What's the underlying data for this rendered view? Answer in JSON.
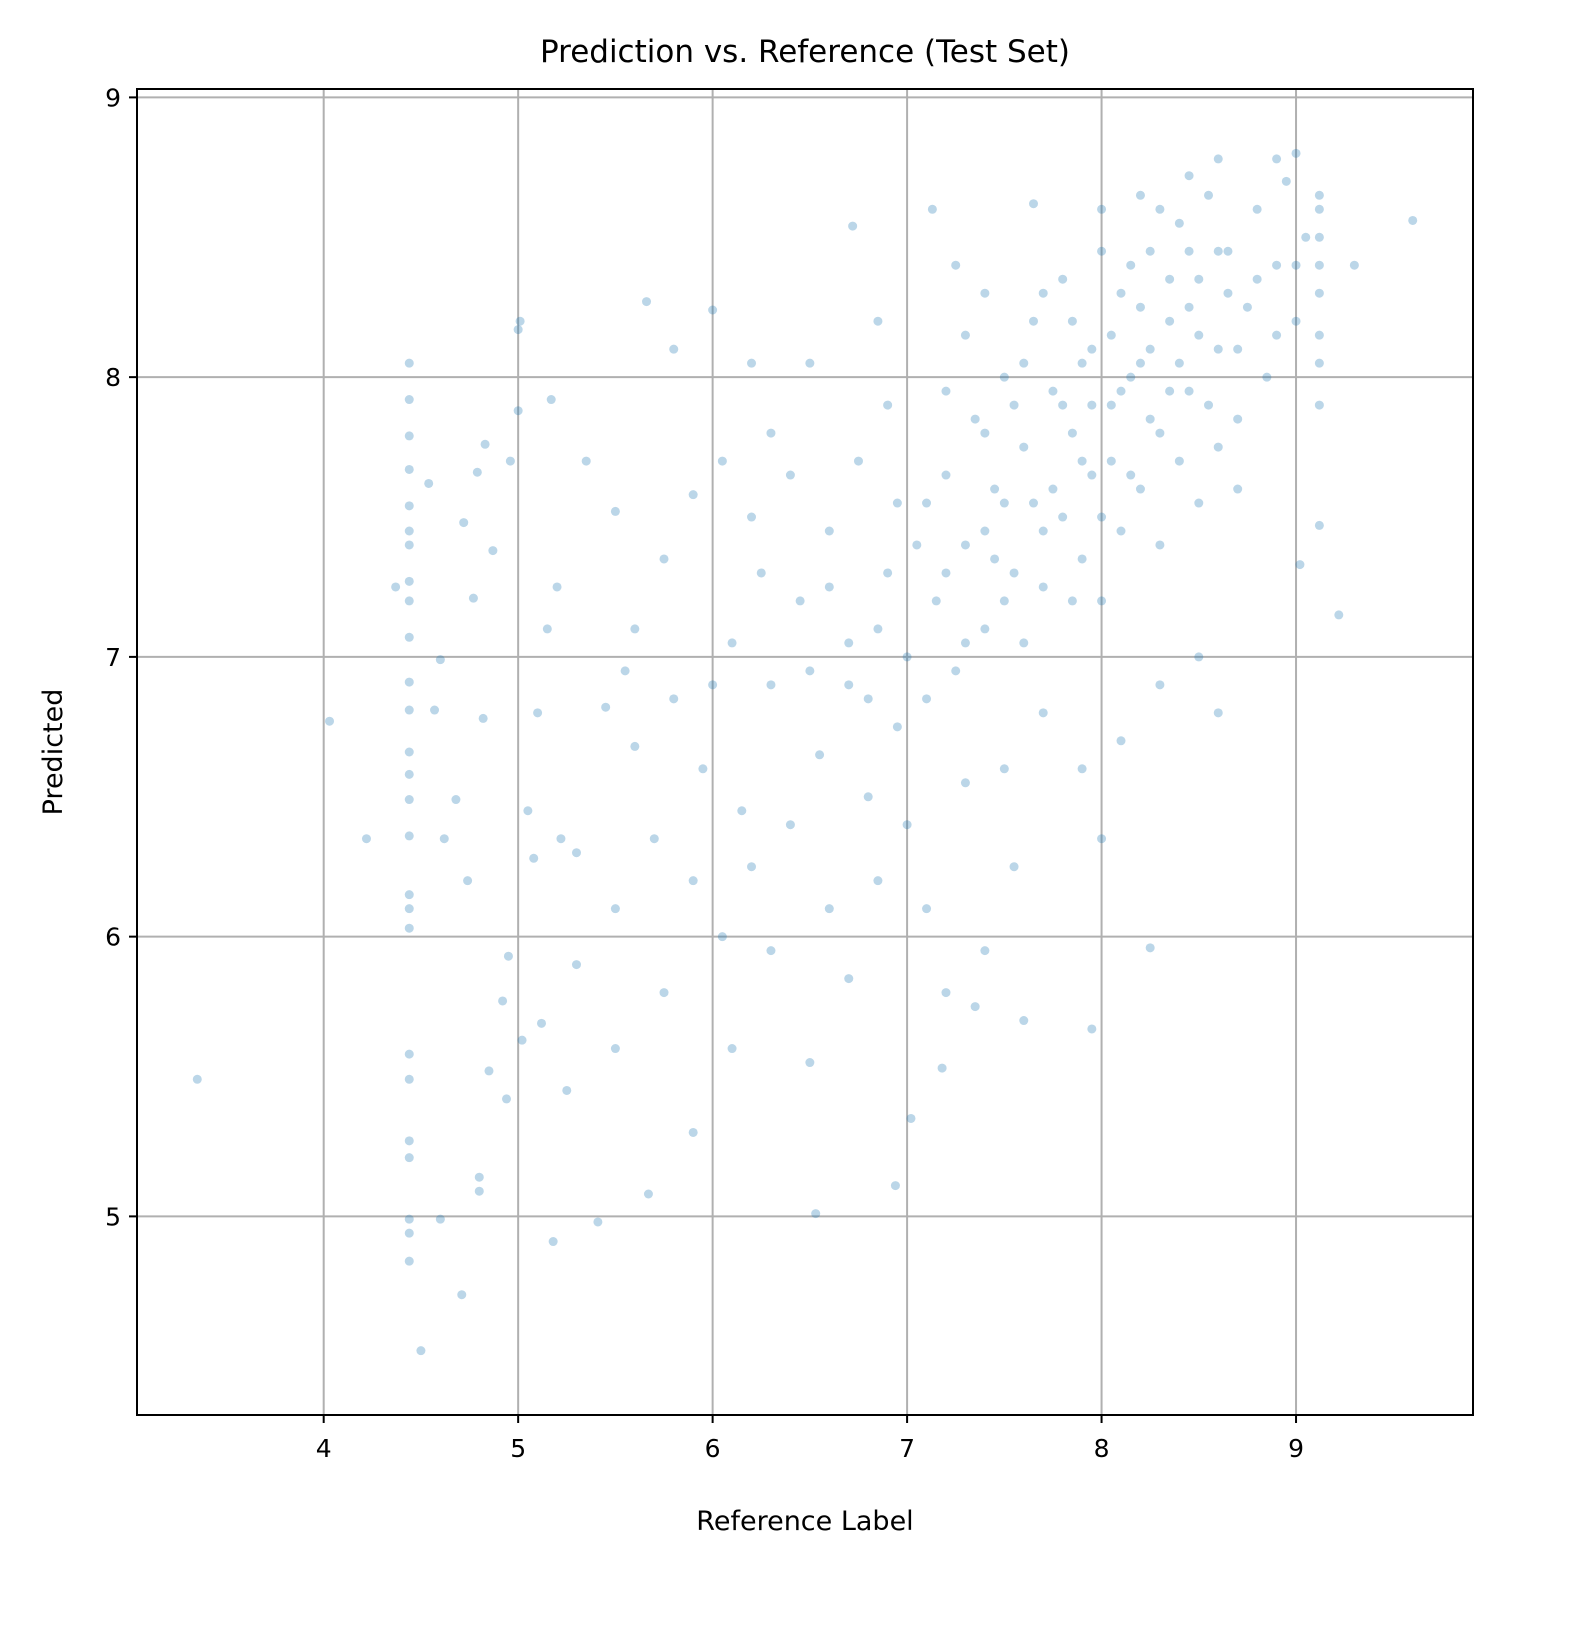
{
  "chart_data": {
    "type": "scatter",
    "title": "Prediction vs. Reference (Test Set)",
    "xlabel": "Reference Label",
    "ylabel": "Predicted",
    "xlim": [
      3.04,
      9.91
    ],
    "ylim": [
      4.29,
      9.03
    ],
    "xticks": [
      4,
      5,
      6,
      7,
      8,
      9
    ],
    "yticks": [
      5,
      6,
      7,
      8,
      9
    ],
    "grid": true,
    "point_color": "#1f77b4",
    "point_alpha": 0.3,
    "points": [
      [
        3.35,
        5.49
      ],
      [
        4.03,
        6.77
      ],
      [
        4.22,
        6.35
      ],
      [
        4.37,
        7.25
      ],
      [
        4.44,
        8.05
      ],
      [
        4.44,
        7.92
      ],
      [
        4.44,
        7.79
      ],
      [
        4.44,
        7.67
      ],
      [
        4.44,
        7.54
      ],
      [
        4.44,
        7.45
      ],
      [
        4.44,
        7.4
      ],
      [
        4.44,
        7.27
      ],
      [
        4.44,
        7.2
      ],
      [
        4.44,
        7.07
      ],
      [
        4.44,
        6.91
      ],
      [
        4.44,
        6.81
      ],
      [
        4.44,
        6.66
      ],
      [
        4.44,
        6.58
      ],
      [
        4.44,
        6.49
      ],
      [
        4.44,
        6.36
      ],
      [
        4.44,
        6.15
      ],
      [
        4.44,
        6.1
      ],
      [
        4.44,
        6.03
      ],
      [
        4.44,
        5.58
      ],
      [
        4.44,
        5.49
      ],
      [
        4.44,
        5.27
      ],
      [
        4.44,
        5.21
      ],
      [
        4.44,
        4.99
      ],
      [
        4.44,
        4.94
      ],
      [
        4.44,
        4.84
      ],
      [
        4.5,
        4.52
      ],
      [
        4.71,
        4.72
      ],
      [
        4.54,
        7.62
      ],
      [
        4.6,
        6.99
      ],
      [
        4.6,
        4.99
      ],
      [
        4.62,
        6.35
      ],
      [
        4.72,
        7.48
      ],
      [
        4.77,
        7.21
      ],
      [
        4.79,
        7.66
      ],
      [
        4.83,
        7.76
      ],
      [
        4.87,
        7.38
      ],
      [
        4.82,
        6.78
      ],
      [
        4.85,
        5.52
      ],
      [
        4.8,
        5.14
      ],
      [
        4.8,
        5.09
      ],
      [
        4.95,
        5.93
      ],
      [
        4.96,
        7.7
      ],
      [
        5.0,
        8.17
      ],
      [
        5.01,
        8.2
      ],
      [
        5.0,
        7.88
      ],
      [
        5.18,
        4.91
      ],
      [
        5.17,
        7.92
      ],
      [
        5.41,
        4.98
      ],
      [
        5.67,
        5.08
      ],
      [
        5.66,
        8.27
      ],
      [
        6.0,
        8.24
      ],
      [
        6.72,
        8.54
      ],
      [
        7.13,
        8.6
      ],
      [
        9.6,
        8.56
      ],
      [
        9.3,
        8.4
      ],
      [
        9.22,
        7.15
      ],
      [
        9.12,
        7.47
      ],
      [
        9.02,
        7.33
      ],
      [
        8.25,
        5.96
      ],
      [
        7.95,
        5.67
      ],
      [
        6.94,
        5.11
      ],
      [
        6.53,
        5.01
      ],
      [
        7.02,
        5.35
      ],
      [
        7.18,
        5.53
      ],
      [
        4.68,
        6.49
      ],
      [
        4.74,
        6.2
      ],
      [
        4.57,
        6.81
      ],
      [
        4.92,
        5.77
      ],
      [
        5.02,
        5.63
      ],
      [
        5.12,
        5.69
      ],
      [
        4.94,
        5.42
      ],
      [
        5.08,
        6.28
      ],
      [
        5.22,
        6.35
      ],
      [
        5.2,
        7.25
      ],
      [
        5.35,
        7.7
      ],
      [
        5.5,
        7.52
      ],
      [
        5.6,
        7.1
      ],
      [
        5.75,
        7.35
      ],
      [
        5.9,
        7.58
      ],
      [
        6.05,
        7.7
      ],
      [
        6.2,
        7.5
      ],
      [
        6.3,
        7.8
      ],
      [
        6.1,
        7.05
      ],
      [
        5.45,
        6.82
      ],
      [
        5.6,
        6.68
      ],
      [
        5.8,
        6.85
      ],
      [
        5.95,
        6.6
      ],
      [
        6.15,
        6.45
      ],
      [
        6.3,
        6.9
      ],
      [
        6.45,
        7.2
      ],
      [
        6.55,
        6.65
      ],
      [
        6.7,
        6.9
      ],
      [
        6.85,
        7.1
      ],
      [
        5.3,
        6.3
      ],
      [
        5.5,
        6.1
      ],
      [
        5.7,
        6.35
      ],
      [
        5.9,
        6.2
      ],
      [
        6.05,
        6.0
      ],
      [
        6.2,
        6.25
      ],
      [
        6.4,
        6.4
      ],
      [
        6.6,
        6.1
      ],
      [
        6.8,
        6.5
      ],
      [
        6.95,
        6.75
      ],
      [
        5.25,
        5.45
      ],
      [
        5.5,
        5.6
      ],
      [
        5.75,
        5.8
      ],
      [
        5.9,
        5.3
      ],
      [
        6.1,
        5.6
      ],
      [
        6.3,
        5.95
      ],
      [
        6.5,
        5.55
      ],
      [
        6.7,
        5.85
      ],
      [
        6.85,
        6.2
      ],
      [
        5.1,
        6.8
      ],
      [
        5.05,
        6.45
      ],
      [
        5.15,
        7.1
      ],
      [
        5.3,
        5.9
      ],
      [
        5.55,
        6.95
      ],
      [
        6.0,
        6.9
      ],
      [
        6.25,
        7.3
      ],
      [
        6.4,
        7.65
      ],
      [
        6.6,
        7.45
      ],
      [
        6.75,
        7.7
      ],
      [
        6.9,
        7.9
      ],
      [
        6.5,
        8.05
      ],
      [
        6.85,
        8.2
      ],
      [
        5.8,
        8.1
      ],
      [
        6.2,
        8.05
      ],
      [
        7.0,
        6.4
      ],
      [
        7.1,
        6.1
      ],
      [
        7.2,
        5.8
      ],
      [
        7.4,
        5.95
      ],
      [
        7.55,
        6.25
      ],
      [
        7.3,
        6.55
      ],
      [
        7.5,
        6.6
      ],
      [
        7.7,
        6.8
      ],
      [
        7.9,
        6.6
      ],
      [
        8.0,
        6.35
      ],
      [
        8.1,
        6.7
      ],
      [
        8.3,
        6.9
      ],
      [
        8.5,
        7.0
      ],
      [
        8.6,
        6.8
      ],
      [
        7.35,
        5.75
      ],
      [
        7.6,
        5.7
      ],
      [
        6.5,
        6.95
      ],
      [
        6.6,
        7.25
      ],
      [
        6.7,
        7.05
      ],
      [
        6.8,
        6.85
      ],
      [
        6.9,
        7.3
      ],
      [
        6.95,
        7.55
      ],
      [
        7.0,
        7.0
      ],
      [
        7.05,
        7.4
      ],
      [
        7.1,
        6.85
      ],
      [
        7.15,
        7.2
      ],
      [
        7.2,
        7.65
      ],
      [
        7.25,
        6.95
      ],
      [
        7.3,
        7.4
      ],
      [
        7.35,
        7.85
      ],
      [
        7.4,
        7.1
      ],
      [
        7.45,
        7.6
      ],
      [
        7.5,
        8.0
      ],
      [
        7.55,
        7.3
      ],
      [
        7.6,
        7.75
      ],
      [
        7.65,
        8.2
      ],
      [
        7.7,
        7.45
      ],
      [
        7.75,
        7.95
      ],
      [
        7.8,
        8.35
      ],
      [
        7.85,
        7.2
      ],
      [
        7.9,
        7.7
      ],
      [
        7.95,
        8.1
      ],
      [
        8.0,
        7.5
      ],
      [
        8.05,
        7.9
      ],
      [
        8.1,
        8.3
      ],
      [
        8.15,
        7.65
      ],
      [
        8.2,
        8.05
      ],
      [
        8.25,
        8.45
      ],
      [
        8.3,
        7.8
      ],
      [
        8.35,
        8.2
      ],
      [
        8.4,
        8.55
      ],
      [
        8.45,
        7.95
      ],
      [
        8.5,
        8.35
      ],
      [
        8.55,
        8.65
      ],
      [
        8.6,
        8.1
      ],
      [
        8.65,
        8.45
      ],
      [
        8.7,
        7.85
      ],
      [
        8.75,
        8.25
      ],
      [
        8.8,
        8.6
      ],
      [
        8.85,
        8.0
      ],
      [
        8.9,
        8.4
      ],
      [
        8.95,
        8.7
      ],
      [
        9.0,
        8.2
      ],
      [
        9.05,
        8.5
      ],
      [
        7.1,
        7.55
      ],
      [
        7.2,
        7.3
      ],
      [
        7.3,
        7.05
      ],
      [
        7.4,
        7.45
      ],
      [
        7.5,
        7.2
      ],
      [
        7.6,
        7.05
      ],
      [
        7.7,
        7.25
      ],
      [
        7.8,
        7.5
      ],
      [
        7.9,
        7.35
      ],
      [
        8.0,
        7.2
      ],
      [
        8.1,
        7.45
      ],
      [
        8.2,
        7.6
      ],
      [
        8.3,
        7.4
      ],
      [
        8.4,
        7.7
      ],
      [
        8.5,
        7.55
      ],
      [
        8.6,
        7.75
      ],
      [
        8.7,
        7.6
      ],
      [
        7.2,
        7.95
      ],
      [
        7.3,
        8.15
      ],
      [
        7.4,
        7.8
      ],
      [
        7.5,
        7.55
      ],
      [
        7.6,
        8.05
      ],
      [
        7.7,
        8.3
      ],
      [
        7.8,
        7.9
      ],
      [
        7.9,
        8.05
      ],
      [
        8.0,
        8.45
      ],
      [
        8.1,
        7.95
      ],
      [
        8.2,
        8.25
      ],
      [
        8.3,
        8.6
      ],
      [
        8.4,
        8.05
      ],
      [
        8.5,
        8.15
      ],
      [
        8.6,
        8.45
      ],
      [
        8.7,
        8.1
      ],
      [
        8.8,
        8.35
      ],
      [
        8.9,
        8.15
      ],
      [
        9.0,
        8.4
      ],
      [
        7.75,
        7.6
      ],
      [
        7.85,
        7.8
      ],
      [
        7.95,
        7.9
      ],
      [
        8.05,
        8.15
      ],
      [
        8.15,
        8.0
      ],
      [
        8.25,
        7.85
      ],
      [
        8.35,
        8.35
      ],
      [
        8.45,
        8.25
      ],
      [
        8.55,
        7.9
      ],
      [
        8.65,
        8.3
      ],
      [
        7.65,
        7.55
      ],
      [
        7.55,
        7.9
      ],
      [
        7.45,
        7.35
      ],
      [
        8.05,
        7.7
      ],
      [
        8.25,
        8.1
      ],
      [
        8.15,
        8.4
      ],
      [
        8.35,
        7.95
      ],
      [
        8.45,
        8.45
      ],
      [
        7.95,
        7.65
      ],
      [
        7.85,
        8.2
      ],
      [
        9.12,
        7.9
      ],
      [
        9.12,
        8.05
      ],
      [
        9.12,
        8.15
      ],
      [
        9.12,
        8.3
      ],
      [
        9.12,
        8.4
      ],
      [
        9.12,
        8.5
      ],
      [
        9.12,
        8.6
      ],
      [
        9.12,
        8.65
      ],
      [
        8.2,
        8.65
      ],
      [
        8.45,
        8.72
      ],
      [
        8.6,
        8.78
      ],
      [
        8.9,
        8.78
      ],
      [
        9.0,
        8.8
      ],
      [
        8.0,
        8.6
      ],
      [
        7.65,
        8.62
      ],
      [
        7.4,
        8.3
      ],
      [
        7.25,
        8.4
      ]
    ]
  }
}
